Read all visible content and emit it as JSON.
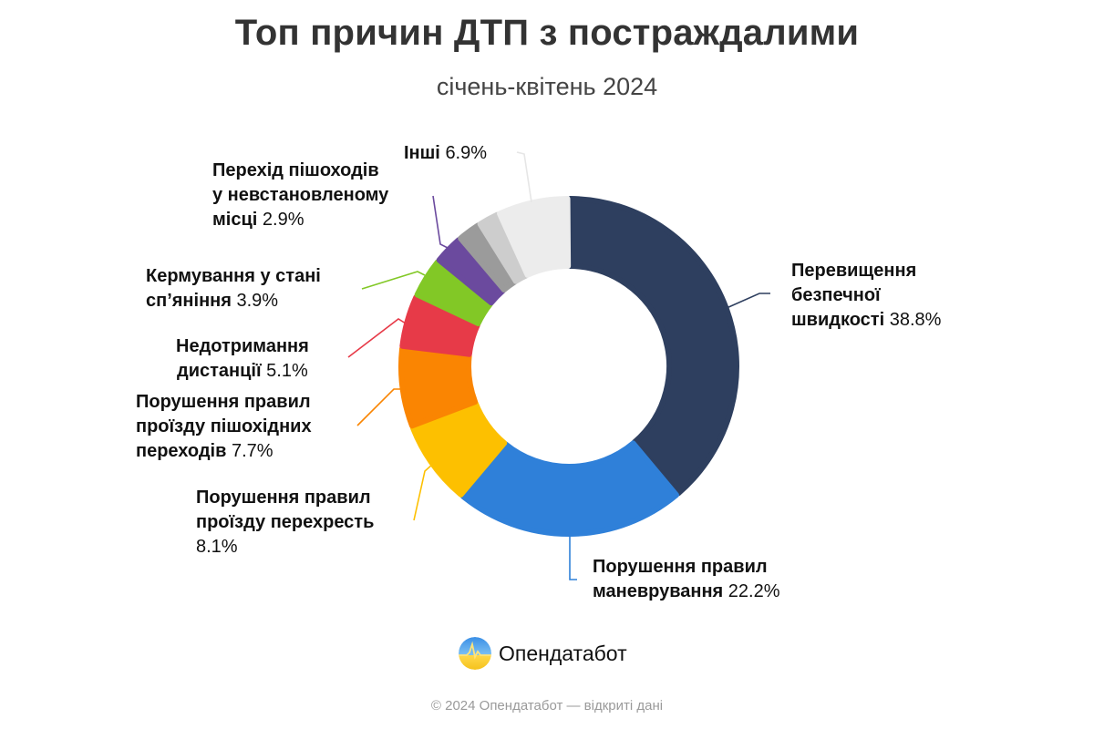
{
  "header": {
    "title": "Топ причин ДТП з постраждалими",
    "subtitle": "січень-квітень 2024"
  },
  "chart_data": {
    "type": "pie",
    "variant": "donut",
    "title": "Топ причин ДТП з постраждалими",
    "subtitle": "січень-квітень 2024",
    "unit": "%",
    "start_angle_deg": 0,
    "direction": "clockwise",
    "slices": [
      {
        "label": "Перевищення безпечної швидкості",
        "value": 38.8,
        "color": "#2e3f5f"
      },
      {
        "label": "Порушення правил маневрування",
        "value": 22.2,
        "color": "#2f80d9"
      },
      {
        "label": "Порушення правил проїзду перехресть",
        "value": 8.1,
        "color": "#fdc000"
      },
      {
        "label": "Порушення правил проїзду пішохідних переходів",
        "value": 7.7,
        "color": "#fa8502"
      },
      {
        "label": "Недотримання дистанції",
        "value": 5.1,
        "color": "#e73a48"
      },
      {
        "label": "Кермування у стані сп’яніння",
        "value": 3.9,
        "color": "#82c826"
      },
      {
        "label": "Перехід пішоходів у невстановленому місці",
        "value": 2.9,
        "color": "#6b4a9e"
      },
      {
        "label": "",
        "value": 2.3,
        "color": "#9b9b9b"
      },
      {
        "label": "",
        "value": 2.1,
        "color": "#cdcdcd"
      },
      {
        "label": "Інші",
        "value": 6.9,
        "color": "#ececec"
      }
    ]
  },
  "labels": {
    "speed": {
      "name_1": "Перевищення",
      "name_2": "безпечної",
      "name_3": "швидкості",
      "pct": "38.8%"
    },
    "maneuver": {
      "name_1": "Порушення правил",
      "name_2": "маневрування",
      "pct": "22.2%"
    },
    "intersection": {
      "name_1": "Порушення правил",
      "name_2": "проїзду перехресть",
      "pct": "8.1%"
    },
    "crossing": {
      "name_1": "Порушення правил",
      "name_2": "проїзду пішохідних",
      "name_3": "переходів",
      "pct": "7.7%"
    },
    "distance": {
      "name_1": "Недотримання",
      "name_2": "дистанції",
      "pct": "5.1%"
    },
    "drunk": {
      "name_1": "Кермування у стані",
      "name_2": "сп’яніння",
      "pct": "3.9%"
    },
    "jaywalk": {
      "name_1": "Перехід пішоходів",
      "name_2": "у невстановленому",
      "name_3": "місці",
      "pct": "2.9%"
    },
    "other": {
      "name_1": "Інші",
      "pct": "6.9%"
    }
  },
  "brand": {
    "logo_icon": "opendatabot-logo-icon",
    "name": "Опендатабот"
  },
  "footer": {
    "text": "© 2024 Опендатабот — відкриті дані"
  }
}
